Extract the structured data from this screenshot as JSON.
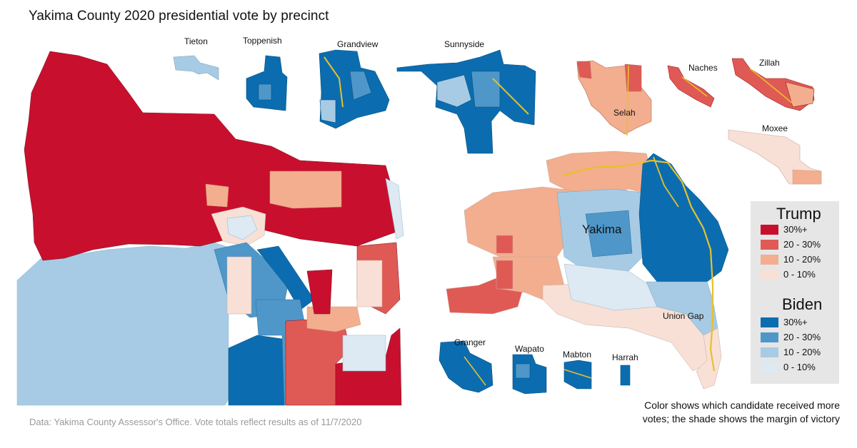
{
  "title": "Yakima County 2020 presidential vote by precinct",
  "labels": {
    "tieton": "Tieton",
    "toppenish": "Toppenish",
    "grandview": "Grandview",
    "sunnyside": "Sunnyside",
    "naches": "Naches",
    "zillah": "Zillah",
    "selah": "Selah",
    "moxee": "Moxee",
    "yakima": "Yakima",
    "union_gap": "Union Gap",
    "granger": "Granger",
    "wapato": "Wapato",
    "mabton": "Mabton",
    "harrah": "Harrah"
  },
  "legend": {
    "trump": {
      "title": "Trump",
      "items": [
        {
          "label": "30%+",
          "color": "#c8102e"
        },
        {
          "label": "20 - 30%",
          "color": "#e05a55"
        },
        {
          "label": "10 - 20%",
          "color": "#f2ae8e"
        },
        {
          "label": "0 - 10%",
          "color": "#f8e0d6"
        }
      ]
    },
    "biden": {
      "title": "Biden",
      "items": [
        {
          "label": "30%+",
          "color": "#0b6db0"
        },
        {
          "label": "20 - 30%",
          "color": "#4f97c9"
        },
        {
          "label": "10 - 20%",
          "color": "#a7cbe4"
        },
        {
          "label": "0 - 10%",
          "color": "#dde9f3"
        }
      ]
    }
  },
  "note_line1": "Color shows which candidate received more",
  "note_line2": "votes; the shade shows the margin of victory",
  "source": "Data: Yakima County Assessor's Office.  Vote totals reflect results as of 11/7/2020"
}
